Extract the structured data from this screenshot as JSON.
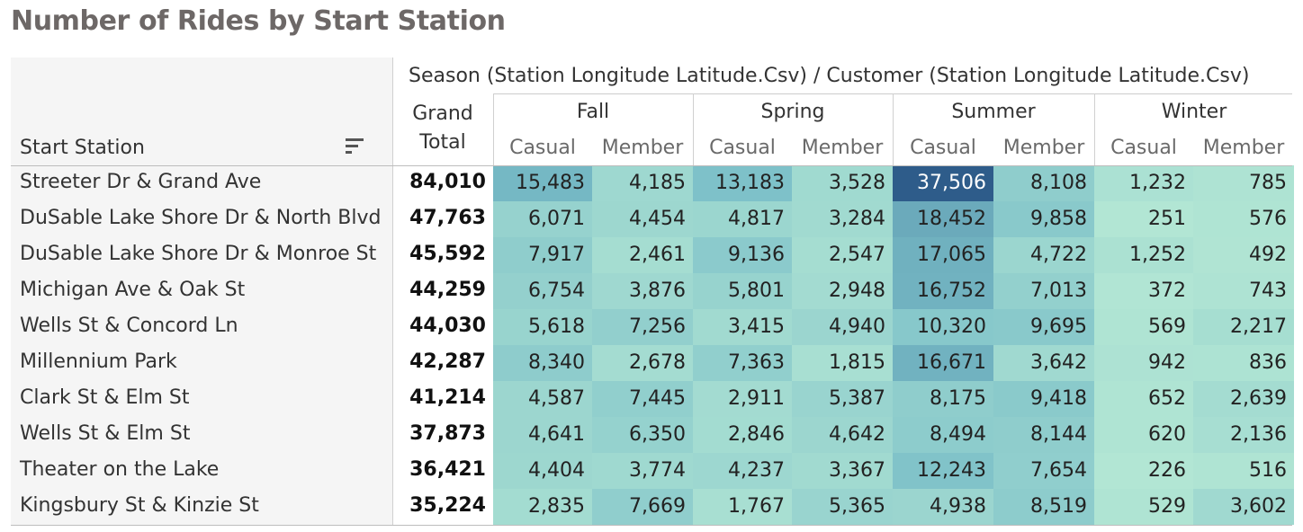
{
  "title": "Number of Rides by Start Station",
  "header": {
    "column_field": "Season (Station Longitude Latitude.Csv)  /  Customer (Station Longitude Latitude.Csv)",
    "row_field": "Start Station",
    "grand_total_line1": "Grand",
    "grand_total_line2": "Total"
  },
  "chart_data": {
    "type": "table",
    "title": "Number of Rides by Start Station",
    "row_field": "Start Station",
    "column_fields": [
      "Season (Station Longitude Latitude.Csv)",
      "Customer (Station Longitude Latitude.Csv)"
    ],
    "seasons": [
      "Fall",
      "Spring",
      "Summer",
      "Winter"
    ],
    "customer_types": [
      "Casual",
      "Member"
    ],
    "color_scale": {
      "low": "#b2e6d4",
      "high": "#2e5c8a",
      "min": 226,
      "max": 37506
    },
    "rows": [
      {
        "station": "Streeter Dr & Grand Ave",
        "grand_total": "84,010",
        "values": [
          15483,
          4185,
          13183,
          3528,
          37506,
          8108,
          1232,
          785
        ]
      },
      {
        "station": "DuSable Lake Shore Dr & North Blvd",
        "grand_total": "47,763",
        "values": [
          6071,
          4454,
          4817,
          3284,
          18452,
          9858,
          251,
          576
        ]
      },
      {
        "station": "DuSable Lake Shore Dr & Monroe St",
        "grand_total": "45,592",
        "values": [
          7917,
          2461,
          9136,
          2547,
          17065,
          4722,
          1252,
          492
        ]
      },
      {
        "station": "Michigan Ave & Oak St",
        "grand_total": "44,259",
        "values": [
          6754,
          3876,
          5801,
          2948,
          16752,
          7013,
          372,
          743
        ]
      },
      {
        "station": "Wells St & Concord Ln",
        "grand_total": "44,030",
        "values": [
          5618,
          7256,
          3415,
          4940,
          10320,
          9695,
          569,
          2217
        ]
      },
      {
        "station": "Millennium Park",
        "grand_total": "42,287",
        "values": [
          8340,
          2678,
          7363,
          1815,
          16671,
          3642,
          942,
          836
        ]
      },
      {
        "station": "Clark St & Elm St",
        "grand_total": "41,214",
        "values": [
          4587,
          7445,
          2911,
          5387,
          8175,
          9418,
          652,
          2639
        ]
      },
      {
        "station": "Wells St & Elm St",
        "grand_total": "37,873",
        "values": [
          4641,
          6350,
          2846,
          4642,
          8494,
          8144,
          620,
          2136
        ]
      },
      {
        "station": "Theater on the Lake",
        "grand_total": "36,421",
        "values": [
          4404,
          3774,
          4237,
          3367,
          12243,
          7654,
          226,
          516
        ]
      },
      {
        "station": "Kingsbury St & Kinzie St",
        "grand_total": "35,224",
        "values": [
          2835,
          7669,
          1767,
          5365,
          4938,
          8519,
          529,
          3602
        ]
      }
    ]
  }
}
